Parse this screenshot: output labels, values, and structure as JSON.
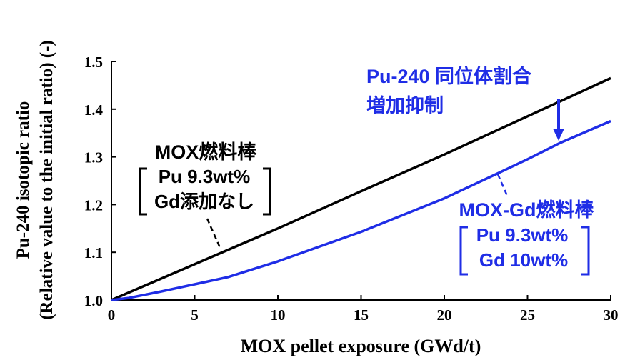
{
  "colors": {
    "black_series": "#000000",
    "blue_series": "#1f2de6",
    "axis": "#000000"
  },
  "chart_data": {
    "type": "line",
    "xlabel": "MOX pellet exposure (GWd/t)",
    "ylabel_line1": "Pu-240 isotopic ratio",
    "ylabel_line2": "(Relative value to the initial ratio) (-)",
    "xlim": [
      0,
      30
    ],
    "ylim": [
      1.0,
      1.5
    ],
    "xticks": [
      0,
      5,
      10,
      15,
      20,
      25,
      30
    ],
    "yticks": [
      "1.0",
      "1.1",
      "1.2",
      "1.3",
      "1.4",
      "1.5"
    ],
    "grid": false,
    "series": [
      {
        "color": "#000000",
        "x": [
          0,
          5,
          10,
          15,
          20,
          25,
          30
        ],
        "y": [
          1.0,
          1.075,
          1.15,
          1.228,
          1.305,
          1.385,
          1.465
        ]
      },
      {
        "color": "#1f2de6",
        "x": [
          0,
          1,
          2,
          3,
          5,
          7,
          10,
          15,
          20,
          23,
          25,
          27,
          30
        ],
        "y": [
          1.0,
          1.004,
          1.011,
          1.018,
          1.033,
          1.048,
          1.081,
          1.143,
          1.213,
          1.262,
          1.295,
          1.33,
          1.375
        ]
      }
    ],
    "annotations": {
      "black": {
        "title": "MOX燃料棒",
        "line1": "Pu 9.3wt%",
        "line2": "Gd添加なし"
      },
      "blue": {
        "title": "MOX-Gd燃料棒",
        "line1": "Pu 9.3wt%",
        "line2": "Gd 10wt%"
      },
      "effect": {
        "line1": "Pu-240 同位体割合",
        "line2": "増加抑制"
      }
    }
  }
}
